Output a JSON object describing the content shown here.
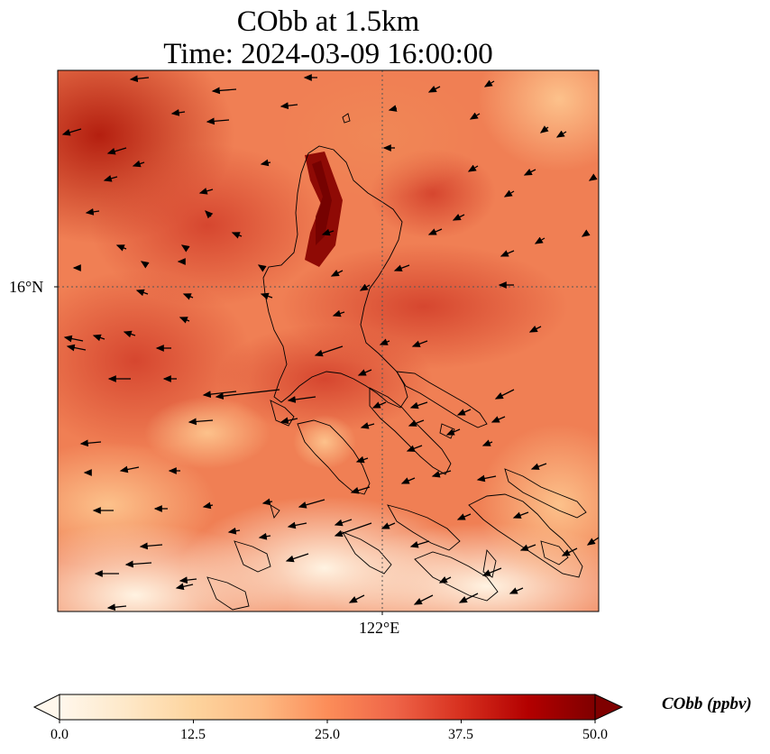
{
  "title": {
    "line1": "CObb at 1.5km",
    "line2": "Time: 2024-03-09 16:00:00"
  },
  "axes": {
    "lat_tick": "16°N",
    "lon_tick": "122°E"
  },
  "colorbar": {
    "label": "CObb (ppbv)",
    "ticks": [
      "0.0",
      "12.5",
      "25.0",
      "37.5",
      "50.0"
    ],
    "min": 0,
    "max": 50,
    "colormap": "OrRd",
    "extend": "both"
  },
  "colors": {
    "low": "#fff7ec",
    "mid": "#f4855d",
    "high": "#7f0000",
    "coastline": "#000000",
    "gridline": "#555555"
  },
  "map_data": {
    "field": "CObb",
    "level": "1.5km",
    "units": "ppbv",
    "overlay": "wind vectors",
    "gridlines": true
  }
}
